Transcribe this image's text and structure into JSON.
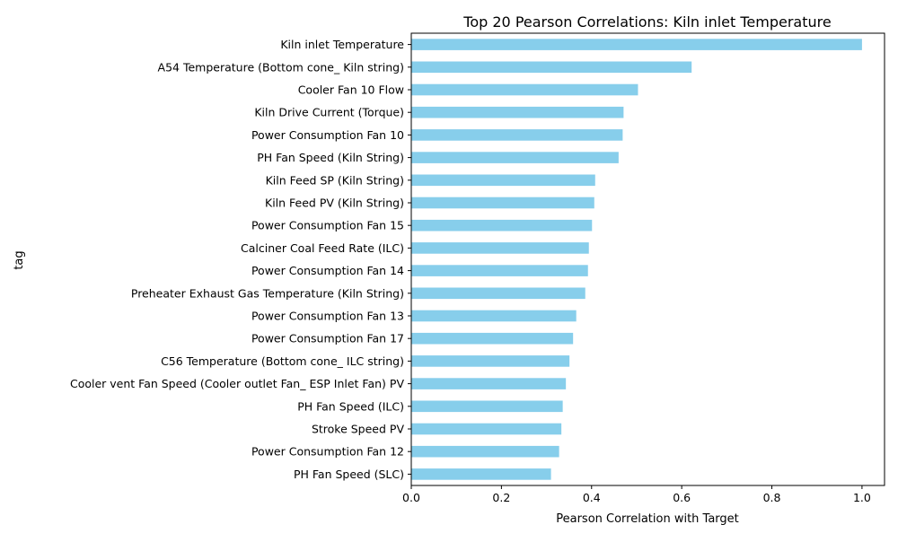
{
  "chart_data": {
    "type": "bar",
    "orientation": "horizontal",
    "title": "Top 20 Pearson Correlations: Kiln inlet Temperature",
    "xlabel": "Pearson Correlation with Target",
    "ylabel": "tag",
    "xlim": [
      0,
      1.05
    ],
    "xticks": [
      "0.0",
      "0.2",
      "0.4",
      "0.6",
      "0.8",
      "1.0"
    ],
    "bar_color": "#87ceeb",
    "grid": false,
    "categories": [
      "Kiln inlet Temperature",
      "A54 Temperature (Bottom cone_ Kiln string)",
      "Cooler Fan 10 Flow",
      "Kiln Drive Current (Torque)",
      "Power Consumption Fan 10",
      "PH Fan Speed  (Kiln String)",
      "Kiln Feed  SP  (Kiln String)",
      "Kiln Feed PV (Kiln String)",
      "Power Consumption Fan 15",
      "Calciner Coal Feed Rate (ILC)",
      "Power Consumption Fan 14",
      "Preheater Exhaust Gas Temperature  (Kiln String)",
      "Power Consumption Fan 13",
      "Power Consumption Fan 17",
      "C56 Temperature (Bottom cone_ ILC string)",
      "Cooler vent Fan Speed (Cooler outlet Fan_ ESP Inlet Fan) PV",
      "PH Fan Speed (ILC)",
      "Stroke Speed PV",
      "Power Consumption Fan 12",
      "PH Fan Speed (SLC)"
    ],
    "values": [
      1.0,
      0.622,
      0.503,
      0.471,
      0.469,
      0.46,
      0.408,
      0.406,
      0.401,
      0.394,
      0.392,
      0.386,
      0.366,
      0.359,
      0.351,
      0.343,
      0.336,
      0.333,
      0.328,
      0.31
    ]
  }
}
